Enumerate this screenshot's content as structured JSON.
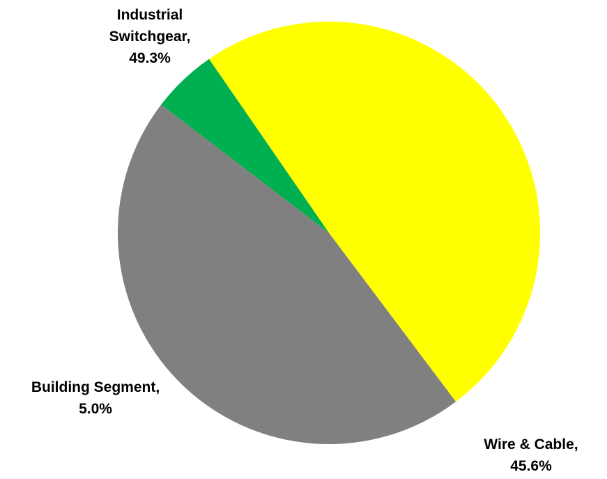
{
  "chart_data": {
    "type": "pie",
    "title": "",
    "slices": [
      {
        "name": "Industrial Switchgear",
        "value": 49.3,
        "color": "#FFFF00"
      },
      {
        "name": "Wire & Cable",
        "value": 45.6,
        "color": "#808080"
      },
      {
        "name": "Building Segment",
        "value": 5.0,
        "color": "#00B050"
      }
    ],
    "labels": [
      {
        "line1": "Industrial",
        "line2": "Switchgear,",
        "line3": "49.3%"
      },
      {
        "line1": "Wire & Cable,",
        "line2": "45.6%"
      },
      {
        "line1": "Building Segment,",
        "line2": "5.0%"
      }
    ],
    "legend": "none"
  }
}
